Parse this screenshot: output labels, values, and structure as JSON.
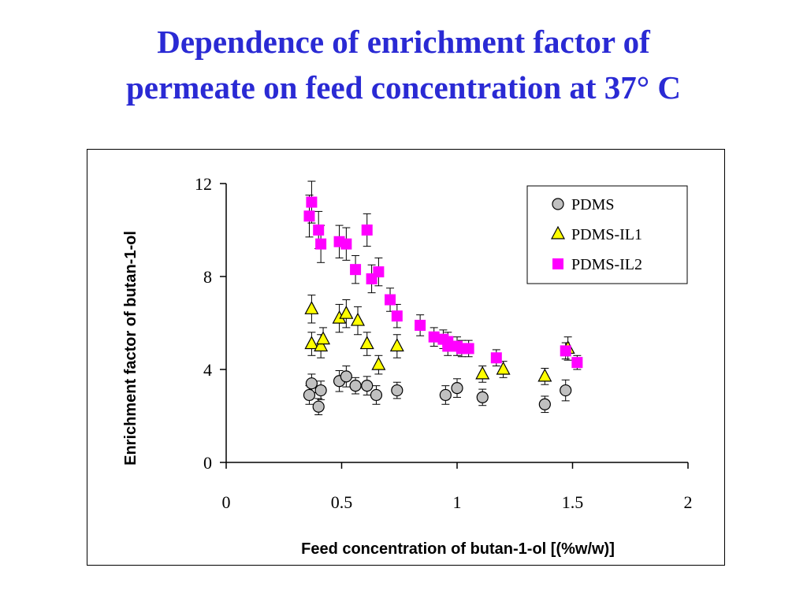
{
  "slide": {
    "title_line1": "Dependence of enrichment factor of",
    "title_line2": "permeate on feed concentration at 37°  C"
  },
  "chart_data": {
    "type": "scatter",
    "title": "",
    "xlabel": "Feed concentration of butan-1-ol [(%w/w)]",
    "ylabel": "Enrichment factor of butan-1-ol",
    "xlim": [
      0,
      2
    ],
    "ylim": [
      0,
      12
    ],
    "xticks": [
      0,
      0.5,
      1,
      1.5,
      2
    ],
    "xtick_labels": [
      "0",
      "0.5",
      "1",
      "1.5",
      "2"
    ],
    "yticks": [
      0,
      4,
      8,
      12
    ],
    "ytick_labels": [
      "0",
      "4",
      "8",
      "12"
    ],
    "grid": false,
    "legend_position": "top-right",
    "series": [
      {
        "name": "PDMS",
        "marker": "circle",
        "color": "#c0c0c0",
        "points": [
          {
            "x": 0.36,
            "y": 2.9,
            "err": 0.4
          },
          {
            "x": 0.37,
            "y": 3.4,
            "err": 0.4
          },
          {
            "x": 0.4,
            "y": 2.4,
            "err": 0.35
          },
          {
            "x": 0.41,
            "y": 3.1,
            "err": 0.4
          },
          {
            "x": 0.49,
            "y": 3.5,
            "err": 0.45
          },
          {
            "x": 0.52,
            "y": 3.7,
            "err": 0.45
          },
          {
            "x": 0.56,
            "y": 3.3,
            "err": 0.35
          },
          {
            "x": 0.61,
            "y": 3.3,
            "err": 0.4
          },
          {
            "x": 0.65,
            "y": 2.9,
            "err": 0.4
          },
          {
            "x": 0.74,
            "y": 3.1,
            "err": 0.35
          },
          {
            "x": 0.95,
            "y": 2.9,
            "err": 0.4
          },
          {
            "x": 1.0,
            "y": 3.2,
            "err": 0.4
          },
          {
            "x": 1.11,
            "y": 2.8,
            "err": 0.35
          },
          {
            "x": 1.38,
            "y": 2.5,
            "err": 0.35
          },
          {
            "x": 1.47,
            "y": 3.1,
            "err": 0.45
          }
        ]
      },
      {
        "name": "PDMS-IL1",
        "marker": "triangle",
        "color": "#ffff00",
        "points": [
          {
            "x": 0.37,
            "y": 6.6,
            "err": 0.6
          },
          {
            "x": 0.37,
            "y": 5.1,
            "err": 0.5
          },
          {
            "x": 0.41,
            "y": 5.0,
            "err": 0.5
          },
          {
            "x": 0.42,
            "y": 5.3,
            "err": 0.5
          },
          {
            "x": 0.49,
            "y": 6.2,
            "err": 0.6
          },
          {
            "x": 0.52,
            "y": 6.4,
            "err": 0.6
          },
          {
            "x": 0.57,
            "y": 6.1,
            "err": 0.6
          },
          {
            "x": 0.61,
            "y": 5.1,
            "err": 0.5
          },
          {
            "x": 0.66,
            "y": 4.2,
            "err": 0.4
          },
          {
            "x": 0.74,
            "y": 5.0,
            "err": 0.5
          },
          {
            "x": 1.11,
            "y": 3.8,
            "err": 0.35
          },
          {
            "x": 1.2,
            "y": 4.0,
            "err": 0.35
          },
          {
            "x": 1.38,
            "y": 3.7,
            "err": 0.35
          },
          {
            "x": 1.48,
            "y": 4.9,
            "err": 0.5
          }
        ]
      },
      {
        "name": "PDMS-IL2",
        "marker": "square",
        "color": "#ff00ff",
        "points": [
          {
            "x": 0.36,
            "y": 10.6,
            "err": 0.9
          },
          {
            "x": 0.37,
            "y": 11.2,
            "err": 0.9
          },
          {
            "x": 0.4,
            "y": 10.0,
            "err": 0.8
          },
          {
            "x": 0.41,
            "y": 9.4,
            "err": 0.8
          },
          {
            "x": 0.49,
            "y": 9.5,
            "err": 0.7
          },
          {
            "x": 0.52,
            "y": 9.4,
            "err": 0.7
          },
          {
            "x": 0.56,
            "y": 8.3,
            "err": 0.6
          },
          {
            "x": 0.61,
            "y": 10.0,
            "err": 0.7
          },
          {
            "x": 0.63,
            "y": 7.9,
            "err": 0.6
          },
          {
            "x": 0.66,
            "y": 8.2,
            "err": 0.6
          },
          {
            "x": 0.71,
            "y": 7.0,
            "err": 0.5
          },
          {
            "x": 0.74,
            "y": 6.3,
            "err": 0.5
          },
          {
            "x": 0.84,
            "y": 5.9,
            "err": 0.45
          },
          {
            "x": 0.9,
            "y": 5.4,
            "err": 0.4
          },
          {
            "x": 0.94,
            "y": 5.3,
            "err": 0.4
          },
          {
            "x": 0.96,
            "y": 5.0,
            "err": 0.4
          },
          {
            "x": 0.96,
            "y": 5.2,
            "err": 0.4
          },
          {
            "x": 1.0,
            "y": 5.0,
            "err": 0.4
          },
          {
            "x": 1.02,
            "y": 4.9,
            "err": 0.35
          },
          {
            "x": 1.05,
            "y": 4.9,
            "err": 0.35
          },
          {
            "x": 1.17,
            "y": 4.5,
            "err": 0.35
          },
          {
            "x": 1.47,
            "y": 4.8,
            "err": 0.35
          },
          {
            "x": 1.52,
            "y": 4.3,
            "err": 0.3
          }
        ]
      }
    ]
  }
}
